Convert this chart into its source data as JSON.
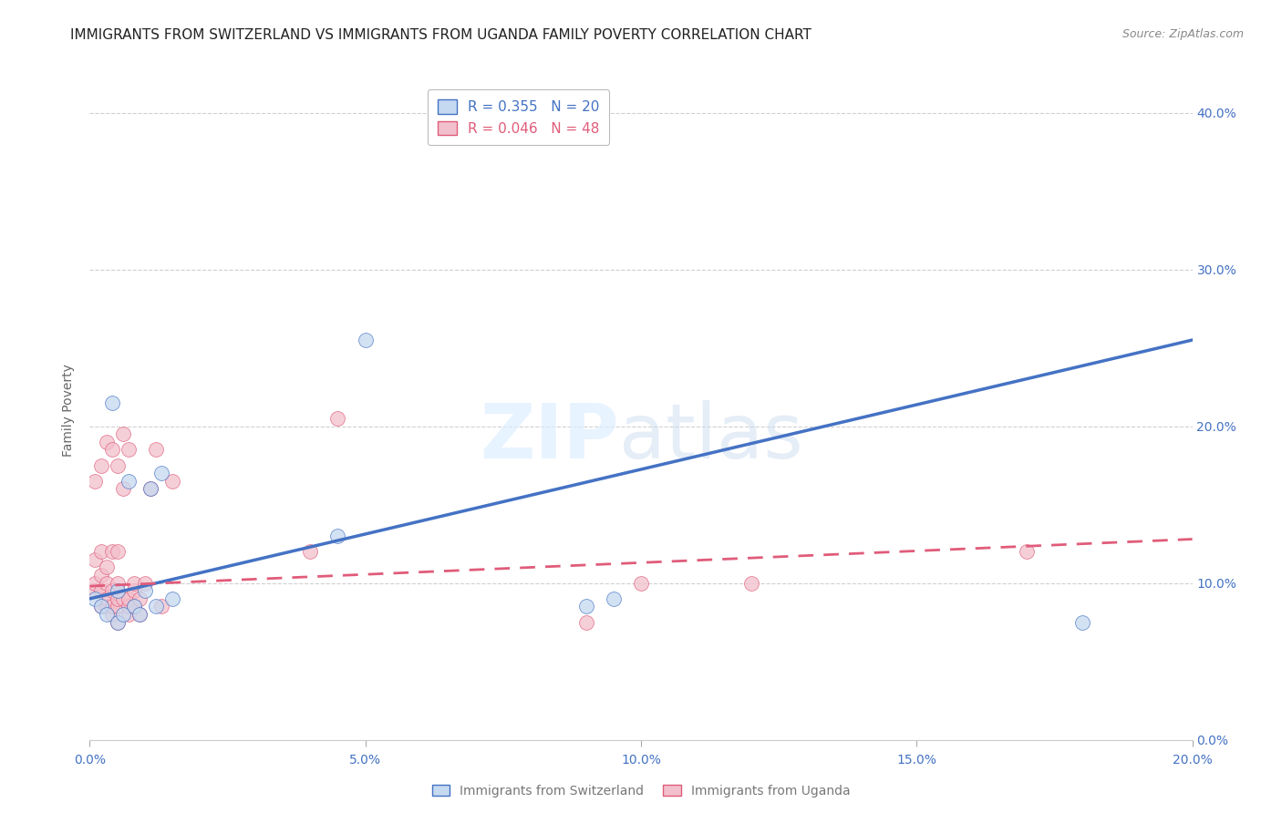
{
  "title": "IMMIGRANTS FROM SWITZERLAND VS IMMIGRANTS FROM UGANDA FAMILY POVERTY CORRELATION CHART",
  "source": "Source: ZipAtlas.com",
  "ylabel_label": "Family Poverty",
  "xlim": [
    0.0,
    0.2
  ],
  "ylim": [
    0.0,
    0.42
  ],
  "xticks": [
    0.0,
    0.05,
    0.1,
    0.15,
    0.2
  ],
  "yticks": [
    0.0,
    0.1,
    0.2,
    0.3,
    0.4
  ],
  "xtick_labels": [
    "0.0%",
    "5.0%",
    "10.0%",
    "15.0%",
    "20.0%"
  ],
  "ytick_labels": [
    "0.0%",
    "10.0%",
    "20.0%",
    "30.0%",
    "40.0%"
  ],
  "grid_color": "#d0d0d0",
  "background_color": "#ffffff",
  "swiss_color": "#c5d9f0",
  "swiss_line_color": "#4472c4",
  "uganda_color": "#f2c0cc",
  "uganda_line_color": "#e05c7a",
  "swiss_R": 0.355,
  "swiss_N": 20,
  "uganda_R": 0.046,
  "uganda_N": 48,
  "swiss_line_x0": 0.0,
  "swiss_line_y0": 0.09,
  "swiss_line_x1": 0.2,
  "swiss_line_y1": 0.255,
  "uganda_line_x0": 0.0,
  "uganda_line_y0": 0.098,
  "uganda_line_x1": 0.2,
  "uganda_line_y1": 0.128,
  "swiss_points_x": [
    0.001,
    0.002,
    0.003,
    0.004,
    0.005,
    0.005,
    0.006,
    0.007,
    0.008,
    0.009,
    0.01,
    0.011,
    0.012,
    0.013,
    0.015,
    0.045,
    0.05,
    0.09,
    0.095,
    0.18
  ],
  "swiss_points_y": [
    0.09,
    0.085,
    0.08,
    0.215,
    0.075,
    0.095,
    0.08,
    0.165,
    0.085,
    0.08,
    0.095,
    0.16,
    0.085,
    0.17,
    0.09,
    0.13,
    0.255,
    0.085,
    0.09,
    0.075
  ],
  "uganda_points_x": [
    0.001,
    0.001,
    0.001,
    0.001,
    0.002,
    0.002,
    0.002,
    0.002,
    0.002,
    0.003,
    0.003,
    0.003,
    0.003,
    0.003,
    0.004,
    0.004,
    0.004,
    0.004,
    0.004,
    0.005,
    0.005,
    0.005,
    0.005,
    0.005,
    0.005,
    0.006,
    0.006,
    0.006,
    0.007,
    0.007,
    0.007,
    0.007,
    0.008,
    0.008,
    0.008,
    0.009,
    0.009,
    0.01,
    0.011,
    0.012,
    0.013,
    0.015,
    0.04,
    0.045,
    0.09,
    0.1,
    0.12,
    0.17
  ],
  "uganda_points_y": [
    0.095,
    0.1,
    0.115,
    0.165,
    0.085,
    0.095,
    0.105,
    0.12,
    0.175,
    0.085,
    0.09,
    0.1,
    0.11,
    0.19,
    0.08,
    0.085,
    0.095,
    0.185,
    0.12,
    0.075,
    0.085,
    0.09,
    0.1,
    0.12,
    0.175,
    0.09,
    0.16,
    0.195,
    0.08,
    0.085,
    0.09,
    0.185,
    0.085,
    0.095,
    0.1,
    0.08,
    0.09,
    0.1,
    0.16,
    0.185,
    0.085,
    0.165,
    0.12,
    0.205,
    0.075,
    0.1,
    0.1,
    0.12
  ],
  "legend_label_swiss": "Immigrants from Switzerland",
  "legend_label_uganda": "Immigrants from Uganda",
  "title_fontsize": 11,
  "axis_label_fontsize": 10,
  "tick_fontsize": 10,
  "legend_fontsize": 11,
  "tick_color": "#4472c4",
  "source_color": "#888888"
}
